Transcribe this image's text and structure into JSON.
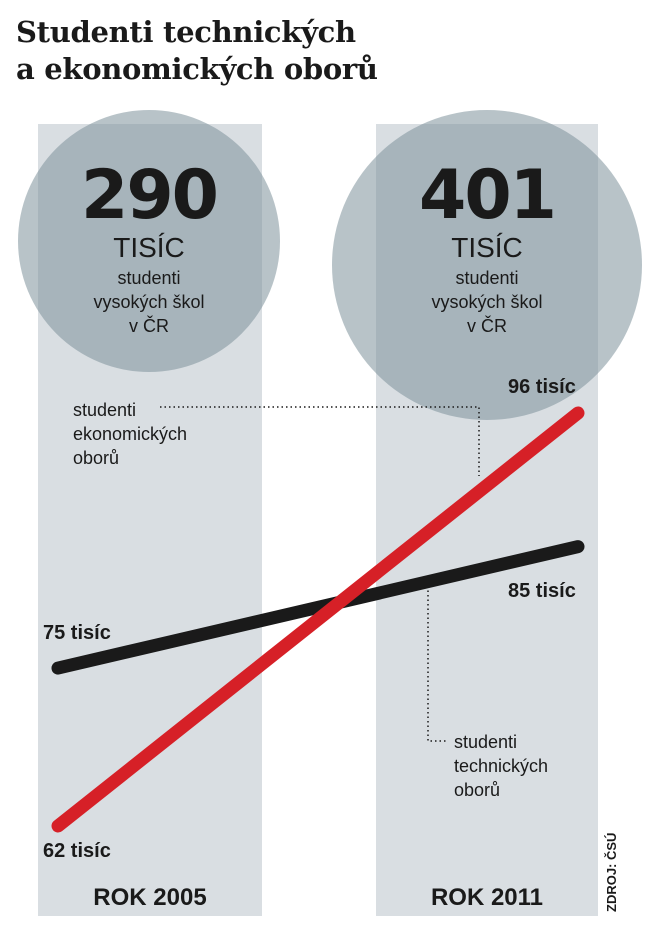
{
  "title": {
    "line1": "Studenti technických",
    "line2": "a ekonomických oborů"
  },
  "totals": [
    {
      "value": "290",
      "unit": "TISÍC",
      "desc": [
        "studenti",
        "vysokých škol",
        "v ČR"
      ]
    },
    {
      "value": "401",
      "unit": "TISÍC",
      "desc": [
        "studenti",
        "vysokých škol",
        "v ČR"
      ]
    }
  ],
  "chart_data": {
    "type": "line",
    "title": "Studenti technických a ekonomických oborů",
    "x": [
      "ROK 2005",
      "ROK 2011"
    ],
    "series": [
      {
        "name": "studenti ekonomických oborů",
        "values": [
          75,
          85
        ],
        "color": "#1a1a1a",
        "value_labels": [
          "75 tisíc",
          "85 tisíc"
        ]
      },
      {
        "name": "studenti technických oborů",
        "values": [
          62,
          96
        ],
        "color": "#d62027",
        "value_labels": [
          "62 tisíc",
          "96 tisíc"
        ]
      }
    ],
    "totals_students_thousands": [
      290,
      401
    ],
    "unit": "tisíc",
    "source": "ZDROJ: ČSÚ"
  },
  "labels": {
    "eko": [
      "studenti",
      "ekonomických",
      "oborů"
    ],
    "tech": [
      "studenti",
      "technických",
      "oborů"
    ]
  },
  "years": [
    "ROK 2005",
    "ROK 2011"
  ],
  "source": "ZDROJ: ČSÚ",
  "colors": {
    "column": "#d9dee2",
    "circle": "#7d929b",
    "red": "#d62027",
    "black": "#1a1a1a"
  }
}
